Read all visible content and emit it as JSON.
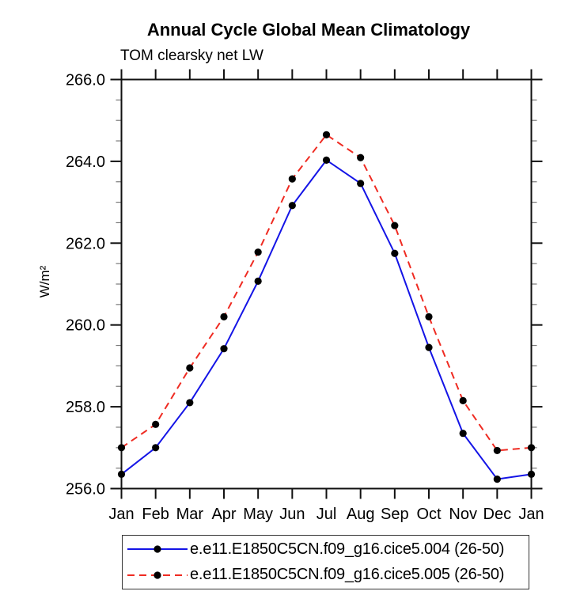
{
  "chart_data": {
    "type": "line",
    "title": "Annual Cycle Global Mean Climatology",
    "subtitle": "TOM clearsky net LW",
    "xlabel": "",
    "ylabel": "W/m²",
    "categories": [
      "Jan",
      "Feb",
      "Mar",
      "Apr",
      "May",
      "Jun",
      "Jul",
      "Aug",
      "Sep",
      "Oct",
      "Nov",
      "Dec",
      "Jan"
    ],
    "ylim": [
      256.0,
      266.0
    ],
    "ytick_major": [
      256.0,
      258.0,
      260.0,
      262.0,
      264.0,
      266.0
    ],
    "ytick_labels": [
      "256.0",
      "258.0",
      "260.0",
      "262.0",
      "264.0",
      "266.0"
    ],
    "ytick_minor_step": 0.5,
    "grid": false,
    "legend_position": "bottom",
    "marker": {
      "shape": "circle",
      "color": "#000000"
    },
    "axis_color": "#111111",
    "series": [
      {
        "name": "e.e11.E1850C5CN.f09_g16.cice5.004 (26-50)",
        "color": "#1414e6",
        "style": "solid",
        "values": [
          256.35,
          257.0,
          258.1,
          259.42,
          261.07,
          262.92,
          264.03,
          263.46,
          261.75,
          259.45,
          257.35,
          256.23,
          256.35
        ]
      },
      {
        "name": "e.e11.E1850C5CN.f09_g16.cice5.005 (26-50)",
        "color": "#ef2b22",
        "style": "dashed",
        "values": [
          257.0,
          257.57,
          258.95,
          260.2,
          261.78,
          263.57,
          264.65,
          264.09,
          262.43,
          260.2,
          258.15,
          256.93,
          257.0
        ]
      }
    ]
  }
}
